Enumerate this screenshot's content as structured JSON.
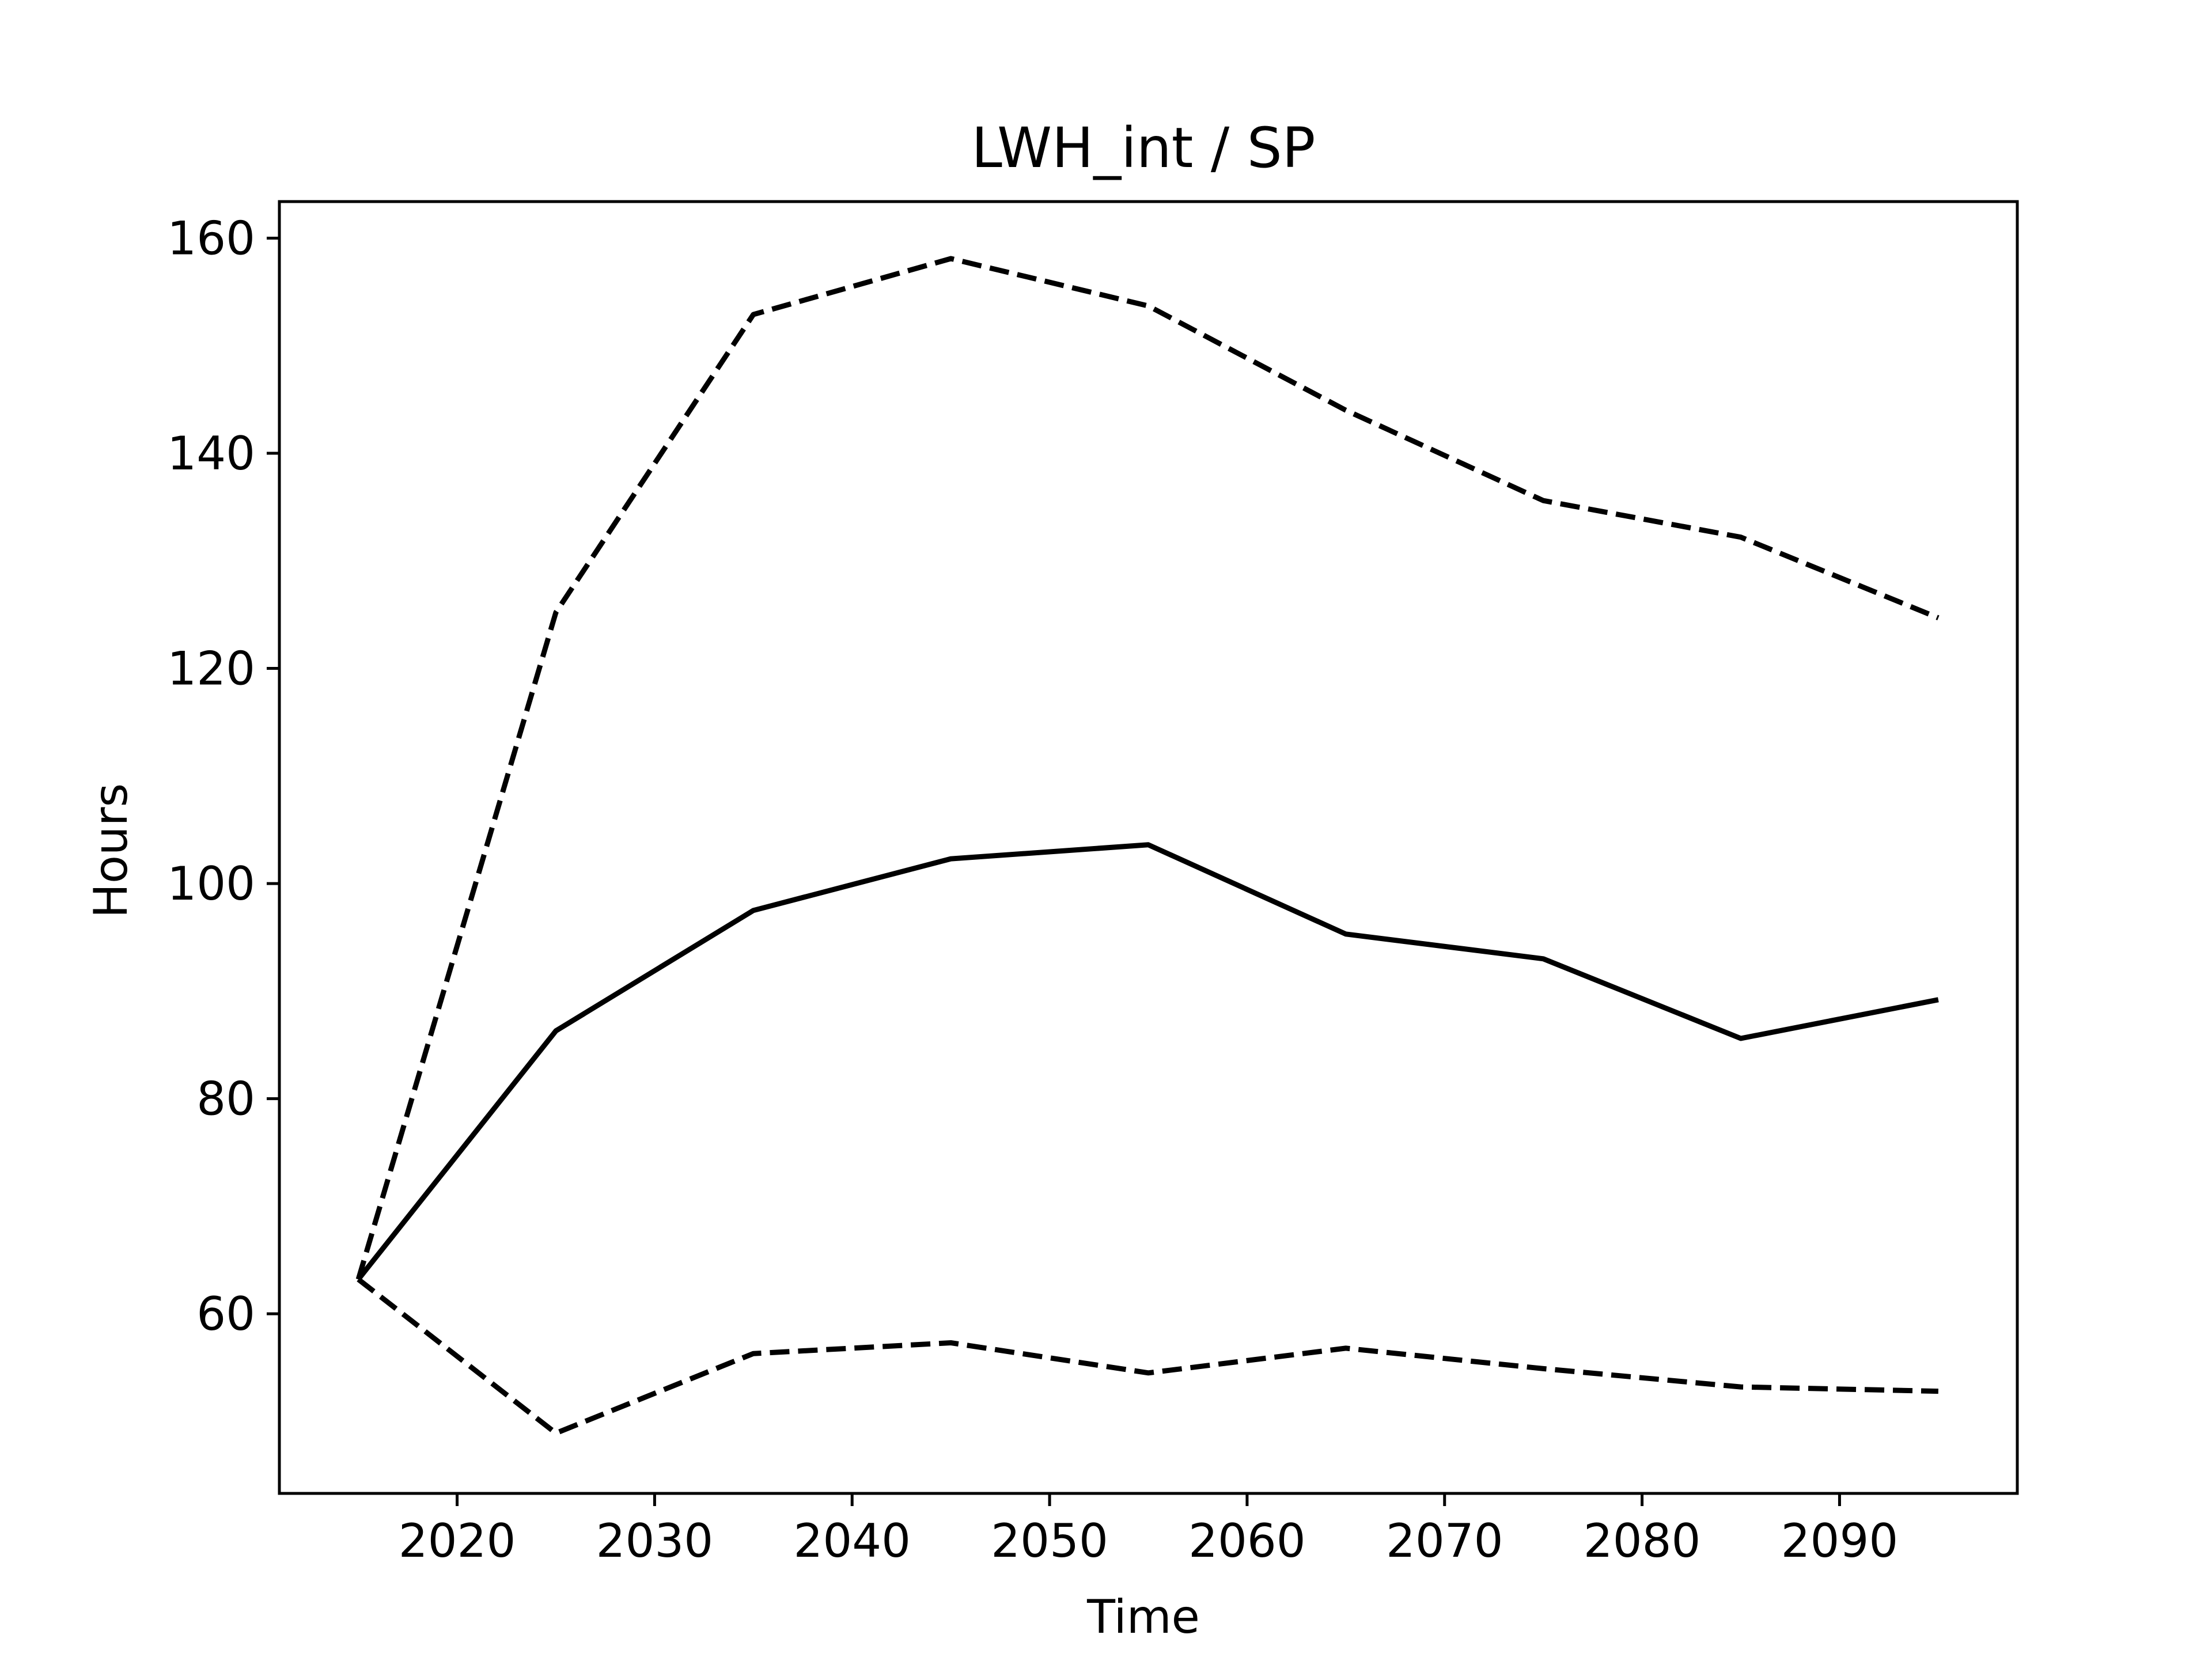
{
  "chart_data": {
    "type": "line",
    "title": "LWH_int / SP",
    "xlabel": "Time",
    "ylabel": "Hours",
    "xlim": [
      2011,
      2099
    ],
    "ylim": [
      43.3,
      163.4
    ],
    "xticks": [
      2020,
      2030,
      2040,
      2050,
      2060,
      2070,
      2080,
      2090
    ],
    "yticks": [
      60,
      80,
      100,
      120,
      140,
      160
    ],
    "grid": false,
    "legend": "none",
    "x": [
      2015,
      2025,
      2035,
      2045,
      2055,
      2065,
      2075,
      2085,
      2095
    ],
    "series": [
      {
        "style": "solid",
        "color": "#000000",
        "values": [
          63.2,
          86.3,
          97.5,
          102.3,
          103.6,
          95.3,
          93.0,
          85.6,
          89.2
        ]
      },
      {
        "style": "dashed",
        "color": "#000000",
        "values": [
          63.2,
          125.2,
          152.9,
          158.1,
          153.7,
          144.0,
          135.6,
          132.2,
          124.7
        ]
      },
      {
        "style": "dashed",
        "color": "#000000",
        "values": [
          63.2,
          48.9,
          56.3,
          57.3,
          54.5,
          56.8,
          54.9,
          53.2,
          52.8
        ]
      }
    ]
  }
}
